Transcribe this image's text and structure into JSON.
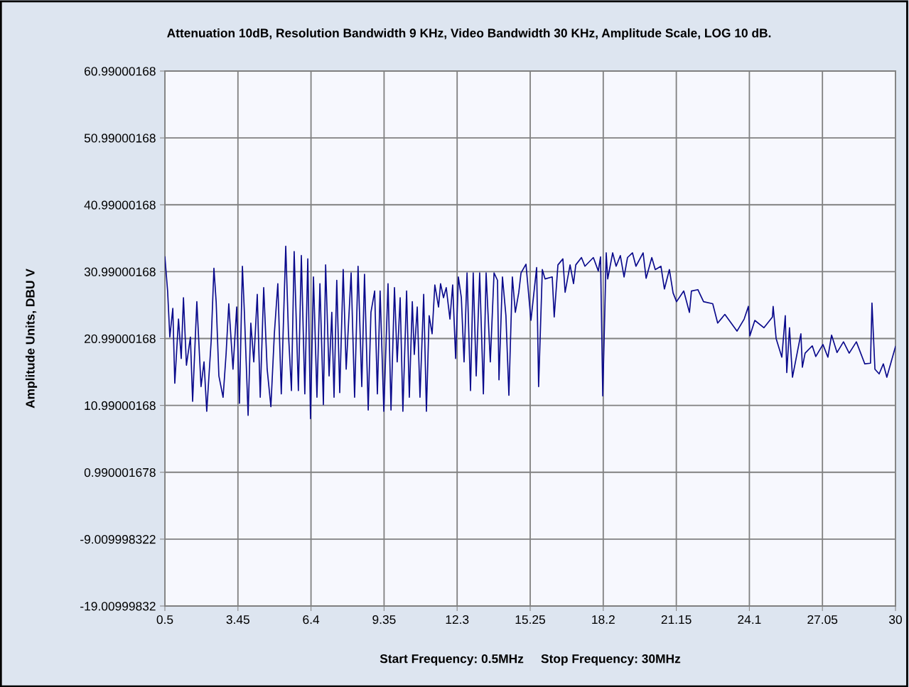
{
  "chart_data": {
    "type": "line",
    "title": "Attenuation 10dB, Resolution Bandwidth 9 KHz, Video Bandwidth 30 KHz, Amplitude Scale, LOG 10 dB.",
    "xlabel": "Start Frequency: 0.5MHz     Stop Frequency: 30MHz",
    "ylabel": "Amplitude Units, DBU V",
    "xlim": [
      0.5,
      30
    ],
    "ylim": [
      -19.00999832,
      60.99000168
    ],
    "xticks": [
      {
        "value": 0.5,
        "label": "0.5"
      },
      {
        "value": 3.45,
        "label": "3.45"
      },
      {
        "value": 6.4,
        "label": "6.4"
      },
      {
        "value": 9.35,
        "label": "9.35"
      },
      {
        "value": 12.3,
        "label": "12.3"
      },
      {
        "value": 15.25,
        "label": "15.25"
      },
      {
        "value": 18.2,
        "label": "18.2"
      },
      {
        "value": 21.15,
        "label": "21.15"
      },
      {
        "value": 24.1,
        "label": "24.1"
      },
      {
        "value": 27.05,
        "label": "27.05"
      },
      {
        "value": 30,
        "label": "30"
      }
    ],
    "yticks": [
      {
        "value": -19.00999832,
        "label": "-19.00999832"
      },
      {
        "value": -9.009998322,
        "label": "-9.009998322"
      },
      {
        "value": 0.990001678,
        "label": "0.990001678"
      },
      {
        "value": 10.99000168,
        "label": "10.99000168"
      },
      {
        "value": 20.99000168,
        "label": "20.99000168"
      },
      {
        "value": 30.99000168,
        "label": "30.99000168"
      },
      {
        "value": 40.99000168,
        "label": "40.99000168"
      },
      {
        "value": 50.99000168,
        "label": "50.99000168"
      },
      {
        "value": 60.99000168,
        "label": "60.99000168"
      }
    ],
    "grid": true,
    "marker": "none",
    "line_style": "solid",
    "series": [
      {
        "color": "#0a0a8c",
        "x": [
          0.5,
          0.61,
          0.7,
          0.82,
          0.9,
          1.05,
          1.16,
          1.25,
          1.37,
          1.53,
          1.62,
          1.79,
          1.96,
          2.08,
          2.19,
          2.37,
          2.48,
          2.57,
          2.68,
          2.85,
          2.97,
          3.08,
          3.25,
          3.4,
          3.51,
          3.63,
          3.71,
          3.86,
          3.97,
          4.09,
          4.23,
          4.35,
          4.49,
          4.63,
          4.78,
          4.92,
          5.06,
          5.2,
          5.38,
          5.49,
          5.61,
          5.72,
          5.89,
          6.01,
          6.15,
          6.27,
          6.38,
          6.5,
          6.64,
          6.76,
          6.9,
          6.99,
          7.13,
          7.24,
          7.33,
          7.44,
          7.56,
          7.7,
          7.82,
          8.02,
          8.16,
          8.3,
          8.45,
          8.56,
          8.71,
          8.82,
          8.97,
          9.08,
          9.19,
          9.34,
          9.51,
          9.63,
          9.77,
          9.88,
          10.0,
          10.11,
          10.26,
          10.37,
          10.49,
          10.57,
          10.69,
          10.8,
          10.95,
          11.06,
          11.17,
          11.29,
          11.4,
          11.55,
          11.63,
          11.75,
          11.86,
          12.01,
          12.12,
          12.24,
          12.35,
          12.47,
          12.58,
          12.7,
          12.84,
          12.95,
          13.07,
          13.21,
          13.36,
          13.47,
          13.64,
          13.79,
          13.93,
          13.99,
          14.13,
          14.27,
          14.39,
          14.53,
          14.65,
          14.79,
          14.88,
          15.08,
          15.28,
          15.51,
          15.59,
          15.74,
          15.85,
          16.14,
          16.22,
          16.37,
          16.57,
          16.66,
          16.86,
          17.0,
          17.09,
          17.32,
          17.46,
          17.8,
          18.0,
          18.09,
          18.18,
          18.32,
          18.38,
          18.58,
          18.72,
          18.89,
          19.04,
          19.18,
          19.38,
          19.52,
          19.81,
          19.93,
          20.16,
          20.3,
          20.53,
          20.67,
          20.87,
          21.02,
          21.16,
          21.45,
          21.68,
          21.76,
          22.02,
          22.25,
          22.62,
          22.82,
          23.11,
          23.6,
          23.89,
          24.06,
          24.12,
          24.32,
          24.69,
          25.03,
          25.06,
          25.18,
          25.41,
          25.55,
          25.61,
          25.72,
          25.84,
          26.18,
          26.24,
          26.35,
          26.64,
          26.78,
          27.07,
          27.27,
          27.42,
          27.64,
          27.9,
          28.13,
          28.42,
          28.76,
          28.99,
          29.05,
          29.17,
          29.34,
          29.51,
          29.65,
          30.0
        ],
        "values": [
          33.2,
          28.1,
          21.2,
          25.5,
          14.3,
          23.9,
          18.0,
          27.1,
          17.0,
          21.2,
          11.6,
          26.5,
          13.8,
          17.5,
          10.1,
          20.7,
          31.5,
          26.5,
          15.4,
          12.2,
          18.6,
          26.2,
          16.4,
          25.7,
          11.3,
          31.8,
          24.9,
          9.5,
          23.3,
          17.5,
          27.6,
          12.2,
          28.6,
          16.4,
          10.8,
          21.7,
          29.2,
          12.7,
          34.8,
          21.7,
          13.2,
          34.0,
          13.2,
          33.4,
          12.7,
          32.9,
          9.0,
          30.2,
          12.2,
          29.2,
          11.1,
          32.0,
          15.4,
          24.9,
          12.2,
          29.7,
          12.9,
          31.3,
          16.4,
          30.8,
          12.2,
          31.8,
          13.8,
          30.6,
          10.3,
          24.9,
          28.1,
          12.7,
          28.1,
          10.1,
          29.2,
          10.3,
          28.6,
          17.5,
          27.1,
          10.1,
          28.1,
          12.2,
          26.5,
          18.6,
          25.7,
          12.2,
          27.6,
          10.1,
          24.4,
          21.7,
          29.0,
          25.7,
          29.2,
          27.1,
          28.6,
          23.9,
          29.0,
          18.0,
          30.2,
          27.1,
          17.5,
          30.8,
          13.2,
          30.8,
          15.4,
          30.8,
          12.7,
          30.8,
          17.5,
          30.8,
          29.7,
          14.8,
          30.2,
          24.4,
          12.5,
          30.2,
          24.9,
          27.9,
          30.8,
          32.1,
          23.7,
          31.6,
          13.8,
          31.3,
          29.9,
          30.2,
          24.2,
          32.0,
          32.9,
          27.9,
          32.0,
          29.2,
          32.0,
          33.1,
          31.8,
          33.1,
          31.1,
          33.2,
          12.4,
          33.8,
          29.9,
          33.8,
          31.8,
          33.4,
          30.2,
          33.1,
          33.8,
          31.8,
          33.8,
          30.0,
          33.1,
          31.3,
          31.8,
          28.4,
          31.3,
          27.8,
          26.5,
          28.1,
          24.9,
          28.1,
          28.3,
          26.5,
          26.2,
          23.3,
          24.6,
          22.1,
          23.9,
          25.8,
          21.4,
          23.7,
          22.6,
          24.2,
          25.8,
          21.0,
          18.2,
          24.4,
          15.9,
          22.6,
          15.2,
          21.7,
          16.7,
          18.8,
          19.9,
          18.3,
          20.1,
          18.2,
          21.5,
          18.9,
          20.5,
          18.8,
          20.5,
          17.2,
          17.3,
          26.3,
          16.4,
          15.7,
          17.2,
          15.2,
          19.8
        ]
      }
    ]
  }
}
